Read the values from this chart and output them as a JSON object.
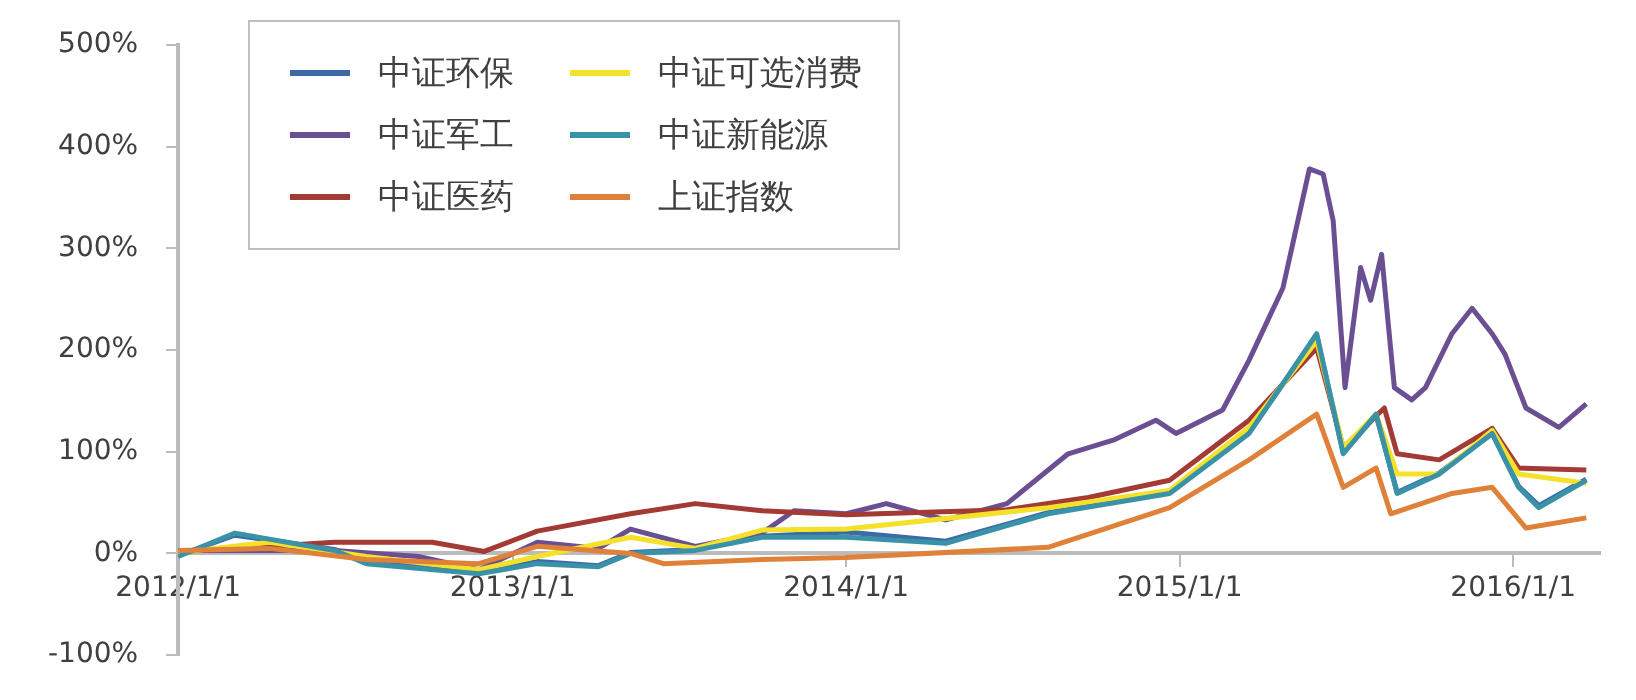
{
  "chart_data": {
    "type": "line",
    "xlim": [
      "2012-01-01",
      "2016-04-05"
    ],
    "xticks": [
      {
        "value": "2012-01-01",
        "label": "2012/1/1"
      },
      {
        "value": "2013-01-01",
        "label": "2013/1/1"
      },
      {
        "value": "2014-01-01",
        "label": "2014/1/1"
      },
      {
        "value": "2015-01-01",
        "label": "2015/1/1"
      },
      {
        "value": "2016-01-01",
        "label": "2016/1/1"
      }
    ],
    "ylim": [
      -100,
      500
    ],
    "yticks": [
      {
        "value": -100,
        "label": "-100%"
      },
      {
        "value": 0,
        "label": "0%"
      },
      {
        "value": 100,
        "label": "100%"
      },
      {
        "value": 200,
        "label": "200%"
      },
      {
        "value": 300,
        "label": "300%"
      },
      {
        "value": 400,
        "label": "400%"
      },
      {
        "value": 500,
        "label": "500%"
      }
    ],
    "grid": false,
    "legend": "top left",
    "marker": "none",
    "line_style": "solid",
    "series": [
      {
        "name": "中证环保",
        "color": "#3b6aa6",
        "x": [
          "2012-01-01",
          "2012-03-03",
          "2012-06-20",
          "2012-07-25",
          "2012-11-25",
          "2013-01-28",
          "2013-04-05",
          "2013-05-10",
          "2013-07-20",
          "2013-10-01",
          "2014-01-01",
          "2014-04-20",
          "2014-08-10",
          "2014-12-21",
          "2015-03-18",
          "2015-05-31",
          "2015-06-29",
          "2015-08-04",
          "2015-08-27",
          "2015-10-12",
          "2015-12-09",
          "2016-01-07",
          "2016-01-29",
          "2016-03-21"
        ],
        "values": [
          -2,
          18,
          4,
          -8,
          -18,
          -8,
          -12,
          1,
          4,
          17,
          21,
          12,
          40,
          60,
          119,
          214,
          99,
          136,
          60,
          79,
          118,
          66,
          47,
          73
        ]
      },
      {
        "name": "中证军工",
        "color": "#6a4f93",
        "x": [
          "2012-01-01",
          "2012-06-20",
          "2012-09-20",
          "2012-11-25",
          "2013-01-28",
          "2013-04-05",
          "2013-05-10",
          "2013-07-20",
          "2013-10-01",
          "2013-11-05",
          "2014-01-01",
          "2014-02-14",
          "2014-04-20",
          "2014-06-26",
          "2014-09-01",
          "2014-10-22",
          "2014-12-06",
          "2014-12-28",
          "2015-02-17",
          "2015-03-18",
          "2015-04-24",
          "2015-05-23",
          "2015-06-07",
          "2015-06-18",
          "2015-07-01",
          "2015-07-18",
          "2015-07-29",
          "2015-08-10",
          "2015-08-24",
          "2015-09-12",
          "2015-09-27",
          "2015-10-26",
          "2015-11-17",
          "2015-12-09",
          "2015-12-23",
          "2016-01-15",
          "2016-02-20",
          "2016-03-21"
        ],
        "values": [
          3,
          3,
          -3,
          -16,
          11,
          5,
          24,
          7,
          20,
          42,
          39,
          49,
          33,
          49,
          98,
          112,
          131,
          118,
          141,
          190,
          261,
          378,
          373,
          327,
          163,
          281,
          249,
          294,
          163,
          151,
          163,
          216,
          241,
          216,
          196,
          143,
          124,
          147
        ]
      },
      {
        "name": "中证医药",
        "color": "#a33a33",
        "x": [
          "2012-01-01",
          "2012-03-03",
          "2012-06-20",
          "2012-10-05",
          "2012-12-01",
          "2013-01-28",
          "2013-05-10",
          "2013-07-20",
          "2013-10-01",
          "2014-01-01",
          "2014-06-26",
          "2014-09-23",
          "2014-12-21",
          "2015-03-18",
          "2015-05-31",
          "2015-06-29",
          "2015-08-13",
          "2015-08-27",
          "2015-10-12",
          "2015-12-09",
          "2016-01-07",
          "2016-03-21"
        ],
        "values": [
          2,
          5,
          11,
          11,
          2,
          22,
          39,
          49,
          42,
          38,
          43,
          55,
          72,
          131,
          202,
          104,
          143,
          98,
          92,
          123,
          84,
          82
        ]
      },
      {
        "name": "中证可选消费",
        "color": "#f5e12a",
        "x": [
          "2012-01-01",
          "2012-04-10",
          "2012-07-25",
          "2012-11-25",
          "2013-01-28",
          "2013-05-10",
          "2013-07-20",
          "2013-10-01",
          "2014-01-01",
          "2014-08-10",
          "2014-12-21",
          "2015-03-18",
          "2015-05-31",
          "2015-06-29",
          "2015-08-04",
          "2015-08-27",
          "2015-10-12",
          "2015-12-09",
          "2016-01-07",
          "2016-03-21"
        ],
        "values": [
          1,
          11,
          -3,
          -16,
          -3,
          16,
          5,
          23,
          24,
          45,
          62,
          124,
          209,
          104,
          137,
          78,
          78,
          121,
          78,
          69
        ]
      },
      {
        "name": "中证新能源",
        "color": "#3a92a8",
        "x": [
          "2012-01-01",
          "2012-03-03",
          "2012-06-20",
          "2012-07-25",
          "2012-11-25",
          "2013-01-28",
          "2013-04-05",
          "2013-05-10",
          "2013-07-20",
          "2013-10-01",
          "2014-01-01",
          "2014-04-20",
          "2014-08-10",
          "2014-12-21",
          "2015-03-18",
          "2015-05-31",
          "2015-06-29",
          "2015-08-04",
          "2015-08-27",
          "2015-10-12",
          "2015-12-09",
          "2016-01-07",
          "2016-01-29",
          "2016-03-21"
        ],
        "values": [
          -3,
          20,
          3,
          -10,
          -20,
          -10,
          -13,
          0,
          3,
          16,
          16,
          10,
          39,
          59,
          118,
          216,
          98,
          137,
          59,
          78,
          118,
          65,
          45,
          72
        ]
      },
      {
        "name": "上证指数",
        "color": "#e0813a",
        "x": [
          "2012-01-01",
          "2012-04-10",
          "2012-07-25",
          "2012-11-25",
          "2013-01-28",
          "2013-05-10",
          "2013-06-15",
          "2013-10-01",
          "2014-01-01",
          "2014-08-10",
          "2014-12-21",
          "2015-03-18",
          "2015-05-31",
          "2015-06-29",
          "2015-08-04",
          "2015-08-20",
          "2015-10-26",
          "2015-12-09",
          "2016-01-15",
          "2016-03-21"
        ],
        "values": [
          3,
          5,
          -6,
          -10,
          7,
          0,
          -10,
          -6,
          -4,
          6,
          45,
          92,
          137,
          65,
          84,
          39,
          59,
          65,
          25,
          35
        ]
      }
    ]
  }
}
